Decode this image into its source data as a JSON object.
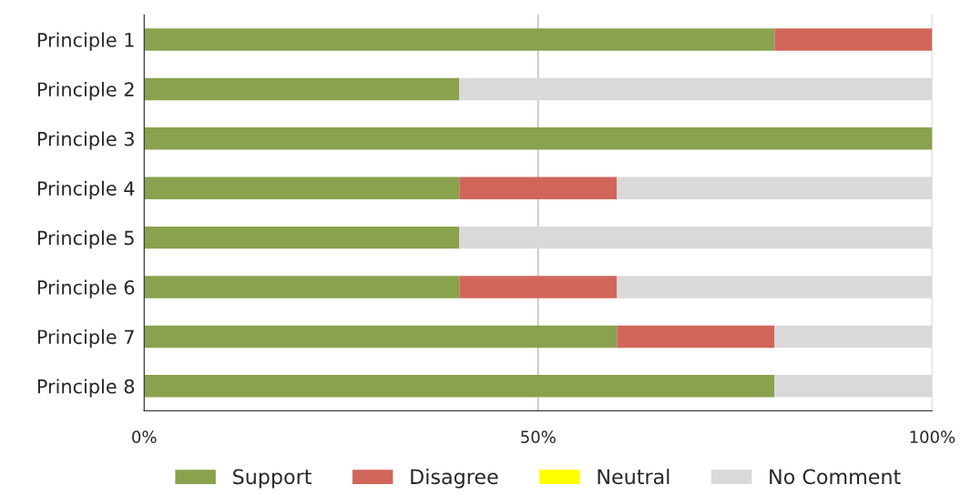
{
  "chart_data": {
    "type": "bar",
    "orientation": "horizontal",
    "stacked": true,
    "categories": [
      "Principle 1",
      "Principle 2",
      "Principle 3",
      "Principle 4",
      "Principle 5",
      "Principle 6",
      "Principle 7",
      "Principle 8"
    ],
    "series": [
      {
        "name": "Support",
        "color": "#8aa14e",
        "values": [
          80,
          40,
          100,
          40,
          40,
          40,
          60,
          80
        ]
      },
      {
        "name": "Disagree",
        "color": "#d0665a",
        "values": [
          20,
          0,
          0,
          20,
          0,
          20,
          20,
          0
        ]
      },
      {
        "name": "Neutral",
        "color": "#ffff00",
        "values": [
          0,
          0,
          0,
          0,
          0,
          0,
          0,
          0
        ]
      },
      {
        "name": "No Comment",
        "color": "#d9d9d9",
        "values": [
          0,
          60,
          0,
          40,
          60,
          40,
          20,
          20
        ]
      }
    ],
    "xlim": [
      0,
      100
    ],
    "xticks": [
      {
        "value": 0,
        "label": "0%"
      },
      {
        "value": 50,
        "label": "50%"
      },
      {
        "value": 100,
        "label": "100%"
      }
    ],
    "grid": "x",
    "legend": "bottom"
  }
}
